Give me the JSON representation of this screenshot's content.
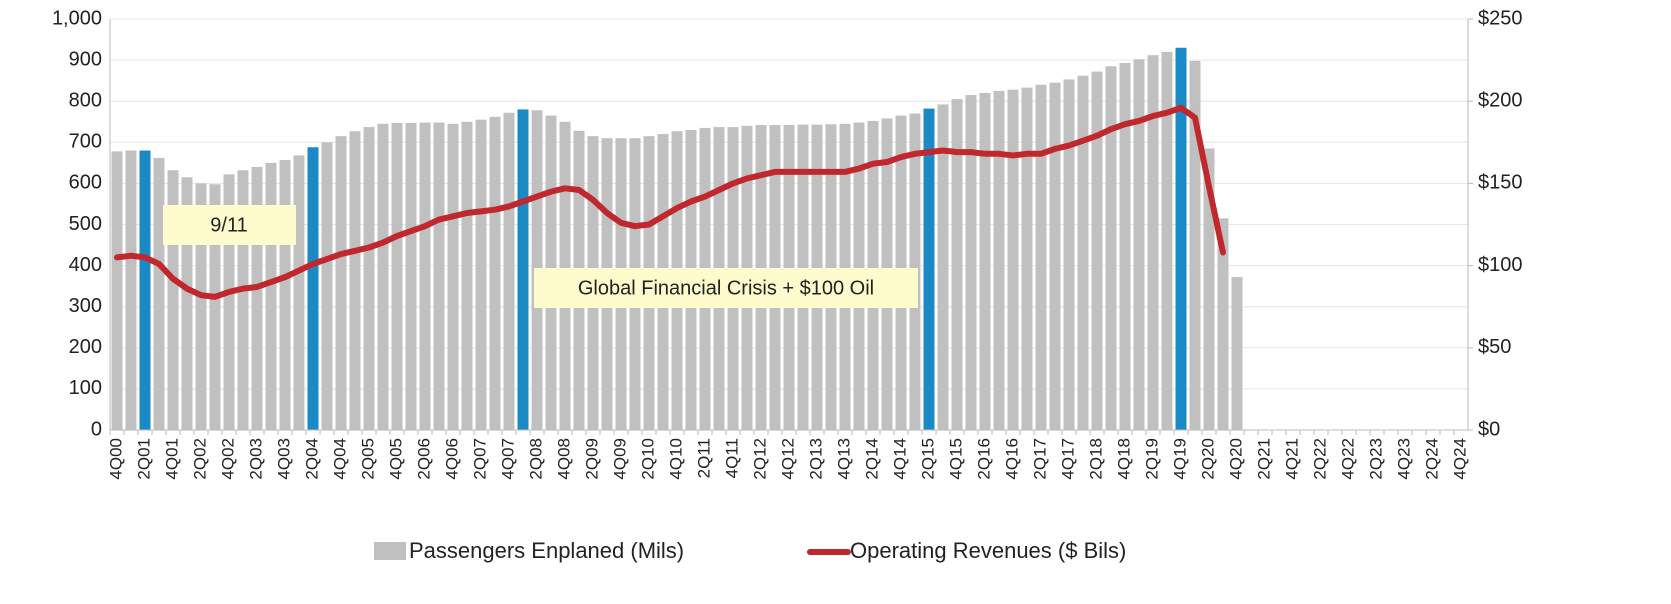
{
  "chart_data": {
    "type": "bar",
    "categories": [
      "4Q00",
      null,
      "2Q01",
      null,
      "4Q01",
      null,
      "2Q02",
      null,
      "4Q02",
      null,
      "2Q03",
      null,
      "4Q03",
      null,
      "2Q04",
      null,
      "4Q04",
      null,
      "2Q05",
      null,
      "4Q05",
      null,
      "2Q06",
      null,
      "4Q06",
      null,
      "2Q07",
      null,
      "4Q07",
      null,
      "2Q08",
      null,
      "4Q08",
      null,
      "2Q09",
      null,
      "4Q09",
      null,
      "2Q10",
      null,
      "4Q10",
      null,
      "2Q11",
      null,
      "4Q11",
      null,
      "2Q12",
      null,
      "4Q12",
      null,
      "2Q13",
      null,
      "4Q13",
      null,
      "2Q14",
      null,
      "4Q14",
      null,
      "2Q15",
      null,
      "4Q15",
      null,
      "2Q16",
      null,
      "4Q16",
      null,
      "2Q17",
      null,
      "4Q17",
      null,
      "2Q18",
      null,
      "4Q18",
      null,
      "2Q19",
      null,
      "4Q19",
      null,
      "2Q20",
      null,
      "4Q20",
      null,
      "2Q21",
      null,
      "4Q21",
      null,
      "2Q22",
      null,
      "4Q22",
      null,
      "2Q23",
      null,
      "4Q23",
      null,
      "2Q24",
      null,
      "4Q24"
    ],
    "series": [
      {
        "name": "Passengers Enplaned (Mils)",
        "type": "bar",
        "color": "#c0c0c0",
        "highlight_color": "#1a8ac6",
        "highlight_indices": [
          2,
          14,
          29,
          58,
          76
        ],
        "values": [
          678,
          680,
          680,
          662,
          632,
          615,
          600,
          598,
          622,
          632,
          640,
          650,
          657,
          668,
          688,
          700,
          715,
          727,
          737,
          745,
          747,
          747,
          748,
          748,
          745,
          750,
          755,
          762,
          772,
          780,
          778,
          765,
          750,
          728,
          715,
          710,
          710,
          710,
          715,
          720,
          727,
          730,
          735,
          737,
          737,
          740,
          742,
          742,
          742,
          743,
          743,
          744,
          745,
          748,
          752,
          758,
          765,
          770,
          782,
          792,
          805,
          815,
          820,
          825,
          828,
          833,
          840,
          845,
          853,
          862,
          872,
          885,
          893,
          902,
          912,
          920,
          930,
          898,
          685,
          515,
          372,
          null,
          null,
          null,
          null,
          null,
          null,
          null,
          null,
          null,
          null,
          null,
          null,
          null,
          null,
          null,
          null
        ]
      },
      {
        "name": "Operating Revenues ($ Bils)",
        "type": "line",
        "axis": "y2",
        "color": "#c0282d",
        "values": [
          105,
          106,
          105,
          101,
          92,
          86,
          82,
          81,
          84,
          86,
          87,
          90,
          93,
          97,
          101,
          104,
          107,
          109,
          111,
          114,
          118,
          121,
          124,
          128,
          130,
          132,
          133,
          134,
          136,
          139,
          142,
          145,
          147,
          146,
          140,
          132,
          126,
          124,
          125,
          130,
          135,
          139,
          142,
          146,
          150,
          153,
          155,
          157,
          157,
          157,
          157,
          157,
          157,
          159,
          162,
          163,
          166,
          168,
          169,
          170,
          169,
          169,
          168,
          168,
          167,
          168,
          168,
          171,
          173,
          176,
          179,
          183,
          186,
          188,
          191,
          193,
          196,
          190,
          148,
          108,
          null,
          null,
          null,
          null,
          null,
          null,
          null,
          null,
          null,
          null,
          null,
          null,
          null,
          null,
          null,
          null,
          null
        ]
      }
    ],
    "ylim": [
      0,
      1000
    ],
    "yticks": [
      0,
      100,
      200,
      300,
      400,
      500,
      600,
      700,
      800,
      900,
      {
        "value": 1000,
        "label": "1,000"
      }
    ],
    "y2lim": [
      0,
      250
    ],
    "y2ticks": [
      {
        "value": 0,
        "label": "$0"
      },
      {
        "value": 50,
        "label": "$50"
      },
      {
        "value": 100,
        "label": "$100"
      },
      {
        "value": 150,
        "label": "$150"
      },
      {
        "value": 200,
        "label": "$200"
      },
      {
        "value": 250,
        "label": "$250"
      }
    ],
    "grid": true,
    "annotations": [
      "9/11",
      "Global Financial Crisis + $100 Oil"
    ],
    "legend": "bottom"
  }
}
